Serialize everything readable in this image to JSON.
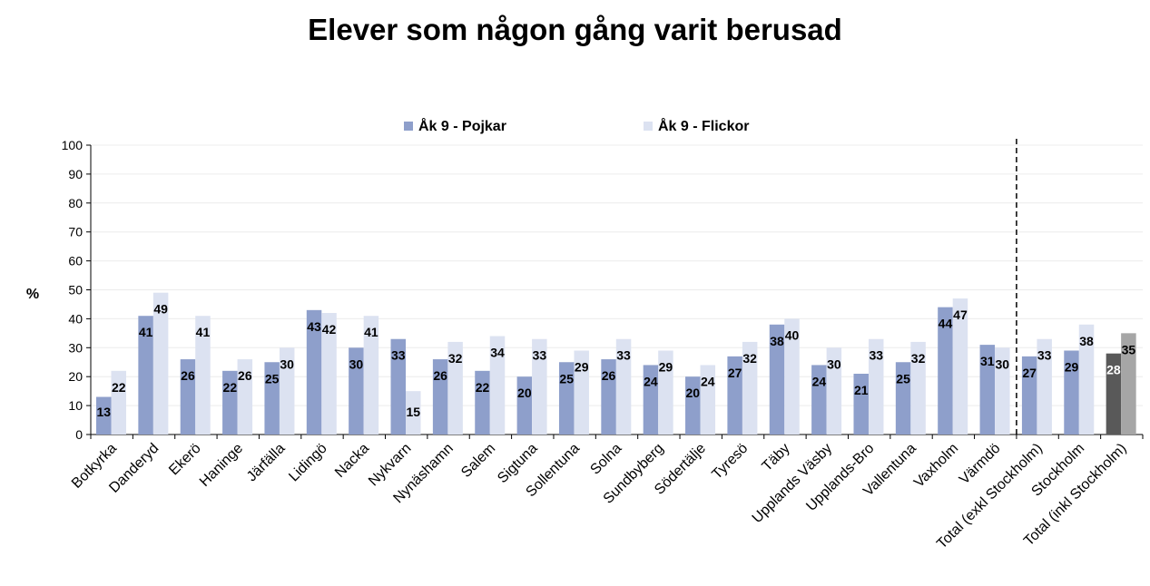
{
  "chart_data": {
    "type": "bar",
    "title": "Elever som någon gång varit berusad",
    "ylabel": "%",
    "ylim": [
      0,
      100
    ],
    "yticks": [
      0,
      10,
      20,
      30,
      40,
      50,
      60,
      70,
      80,
      90,
      100
    ],
    "grid": true,
    "legend_position": "top",
    "categories": [
      "Botkyrka",
      "Danderyd",
      "Ekerö",
      "Haninge",
      "Järfälla",
      "Lidingö",
      "Nacka",
      "Nykvarn",
      "Nynäshamn",
      "Salem",
      "Sigtuna",
      "Sollentuna",
      "Solna",
      "Sundbyberg",
      "Södertälje",
      "Tyresö",
      "Täby",
      "Upplands Väsby",
      "Upplands-Bro",
      "Vallentuna",
      "Vaxholm",
      "Värmdö",
      "Total (exkl Stockholm)",
      "Stockholm",
      "Total (inkl Stockholm)"
    ],
    "series": [
      {
        "name": "Åk 9 - Pojkar",
        "color": "#8E9FCB",
        "values": [
          13,
          41,
          26,
          22,
          25,
          43,
          30,
          33,
          26,
          22,
          20,
          25,
          26,
          24,
          20,
          27,
          38,
          24,
          21,
          25,
          44,
          31,
          27,
          29,
          28
        ]
      },
      {
        "name": "Åk 9 - Flickor",
        "color": "#DCE2F1",
        "values": [
          22,
          49,
          41,
          26,
          30,
          42,
          41,
          15,
          32,
          34,
          33,
          29,
          33,
          29,
          24,
          32,
          40,
          30,
          33,
          32,
          47,
          30,
          33,
          38,
          35
        ]
      }
    ],
    "highlight_last_category_colors": [
      "#595959",
      "#A6A6A6"
    ],
    "separator_after_category": "Värmdö"
  }
}
